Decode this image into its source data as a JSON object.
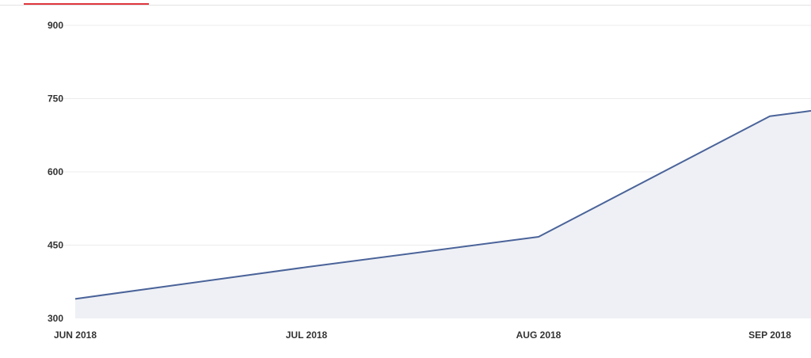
{
  "colors": {
    "line": "#4a6399",
    "area_fill": "#eef0f5",
    "grid": "#ececec",
    "tab_indicator": "#e0363e"
  },
  "chart_data": {
    "type": "area",
    "categories": [
      "JUN 2018",
      "JUL 2018",
      "AUG 2018",
      "SEP 2018"
    ],
    "series": [
      {
        "values": [
          340,
          405,
          467,
          714
        ]
      }
    ],
    "trailing_value": 725,
    "yticks": [
      300,
      450,
      600,
      750,
      900
    ],
    "ylim": [
      300,
      900
    ],
    "grid": true,
    "title": "",
    "xlabel": "",
    "ylabel": ""
  }
}
